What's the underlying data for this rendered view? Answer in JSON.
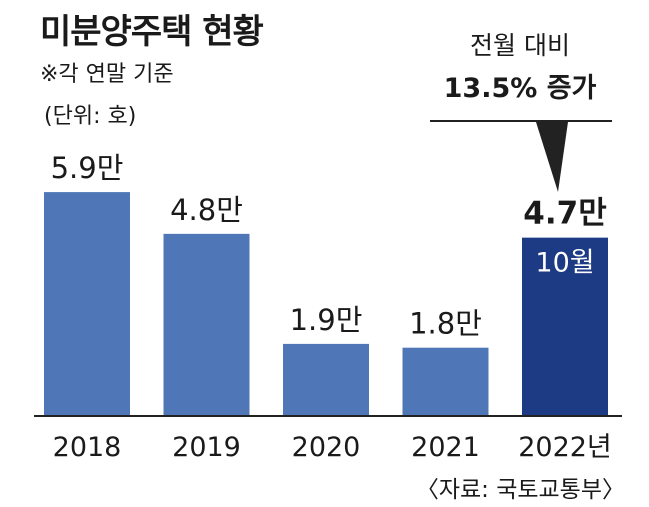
{
  "title": "미분양주택 현황",
  "subtitle": "※각 연말 기준",
  "unit_label": "(단위: 호)",
  "callout": {
    "line1": "전월 대비",
    "line2": "13.5% 증가"
  },
  "source": "〈자료: 국토교통부〉",
  "colors": {
    "bar": "#4f77b7",
    "highlight": "#1d3a84",
    "text": "#1a1a1a",
    "axis": "#222222"
  },
  "chart_data": {
    "type": "bar",
    "categories": [
      "2018",
      "2019",
      "2020",
      "2021",
      "2022년"
    ],
    "values": [
      5.9,
      4.8,
      1.9,
      1.8,
      4.7
    ],
    "value_labels": [
      "5.9만",
      "4.8만",
      "1.9만",
      "1.8만",
      "4.7만"
    ],
    "highlight_index": 4,
    "highlight_inner_label": "10월",
    "ylim": [
      0,
      7.8
    ],
    "unit": "만 호",
    "grid": false,
    "legend": "none"
  }
}
